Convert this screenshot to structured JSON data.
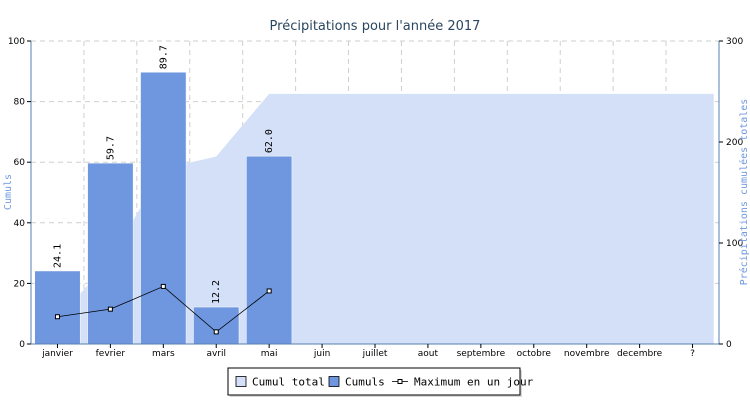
{
  "chart_data": {
    "type": "bar",
    "title": "Précipitations pour l'année 2017",
    "categories": [
      "janvier",
      "fevrier",
      "mars",
      "avril",
      "mai",
      "juin",
      "juillet",
      "aout",
      "septembre",
      "octobre",
      "novembre",
      "decembre",
      "?"
    ],
    "ylabel_left": "Cumuls",
    "ylabel_right": "Précipitations cumulées totales",
    "ylim_left": [
      0,
      100
    ],
    "ylim_right": [
      0,
      300
    ],
    "yticks_left": [
      0,
      20,
      40,
      60,
      80,
      100
    ],
    "yticks_right": [
      0,
      100,
      200,
      300
    ],
    "grid": true,
    "legend_position": "bottom",
    "series": [
      {
        "name": "Cumul total",
        "kind": "area",
        "axis": "right",
        "values": [
          24.1,
          83.8,
          173.5,
          185.7,
          247.7,
          247.7,
          247.7,
          247.7,
          247.7,
          247.7,
          247.7,
          247.7,
          247.7
        ]
      },
      {
        "name": "Cumuls",
        "kind": "bar",
        "axis": "left",
        "values": [
          24.1,
          59.7,
          89.7,
          12.2,
          62.0,
          null,
          null,
          null,
          null,
          null,
          null,
          null,
          null
        ],
        "labels": [
          "24.1",
          "59.7",
          "89.7",
          "12.2",
          "62.0",
          "",
          "",
          "",
          "",
          "",
          "",
          "",
          ""
        ]
      },
      {
        "name": "Maximum en un jour",
        "kind": "line",
        "axis": "left",
        "values": [
          9,
          11.5,
          19,
          4,
          17.5,
          null,
          null,
          null,
          null,
          null,
          null,
          null,
          null
        ]
      }
    ],
    "colors": {
      "area": "#d3e0f8",
      "bar": "#6f97df",
      "line": "#000000",
      "axis_left": "#000000",
      "axis_right_label": "#6f97df",
      "title": "#2a4660",
      "grid": "#cfcfcf",
      "axis_line": "#5a7fb0"
    }
  }
}
